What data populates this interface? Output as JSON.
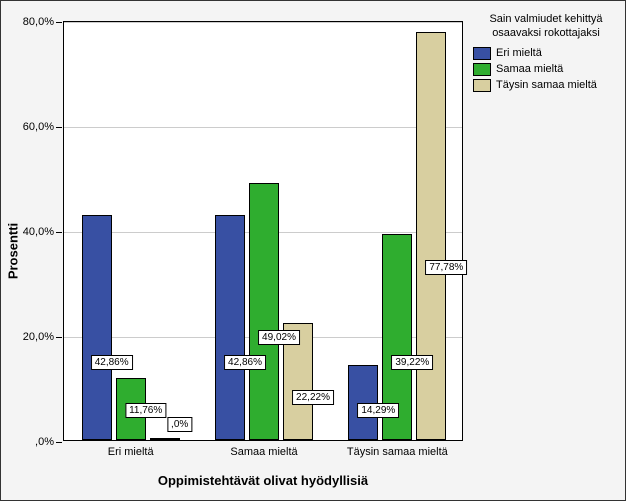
{
  "chart": {
    "type": "bar",
    "ylabel": "Prosentti",
    "xlabel": "Oppimistehtävät olivat hyödyllisiä",
    "background_color": "#f4f4f4",
    "plot_bg_color": "#ffffff",
    "grid_color": "#cccccc",
    "border_color": "#000000",
    "ylabel_fontsize": 13,
    "xlabel_fontsize": 13,
    "tick_fontsize": 11,
    "ylim": [
      0,
      80
    ],
    "ytick_step": 20,
    "yticks": [
      {
        "value": 0,
        "label": ",0%"
      },
      {
        "value": 20,
        "label": "20,0%"
      },
      {
        "value": 40,
        "label": "40,0%"
      },
      {
        "value": 60,
        "label": "60,0%"
      },
      {
        "value": 80,
        "label": "80,0%"
      }
    ],
    "categories": [
      "Eri mieltä",
      "Samaa mieltä",
      "Täysin samaa mieltä"
    ],
    "series": [
      {
        "name": "Eri mieltä",
        "color": "#3850a3"
      },
      {
        "name": "Samaa mieltä",
        "color": "#2fad2f"
      },
      {
        "name": "Täysin samaa mieltä",
        "color": "#d8cfa0"
      }
    ],
    "data": [
      {
        "category": "Eri mieltä",
        "bars": [
          {
            "series": 0,
            "value": 42.86,
            "label": "42,86%"
          },
          {
            "series": 1,
            "value": 11.76,
            "label": "11,76%"
          },
          {
            "series": 2,
            "value": 0.0,
            "label": ",0%"
          }
        ]
      },
      {
        "category": "Samaa mieltä",
        "bars": [
          {
            "series": 0,
            "value": 42.86,
            "label": "42,86%"
          },
          {
            "series": 1,
            "value": 49.02,
            "label": "49,02%"
          },
          {
            "series": 2,
            "value": 22.22,
            "label": "22,22%"
          }
        ]
      },
      {
        "category": "Täysin samaa mieltä",
        "bars": [
          {
            "series": 0,
            "value": 14.29,
            "label": "14,29%"
          },
          {
            "series": 1,
            "value": 39.22,
            "label": "39,22%"
          },
          {
            "series": 2,
            "value": 77.78,
            "label": "77,78%"
          }
        ]
      }
    ],
    "legend": {
      "title": "Sain valmiudet kehittyä osaavaksi rokottajaksi",
      "items": [
        {
          "color": "#3850a3",
          "label": "Eri mieltä"
        },
        {
          "color": "#2fad2f",
          "label": "Samaa mieltä"
        },
        {
          "color": "#d8cfa0",
          "label": "Täysin samaa mieltä"
        }
      ]
    },
    "bar_label_offsets": [
      [
        {
          "dy": 70
        },
        {
          "dy": 22
        },
        {
          "dy": 8
        }
      ],
      [
        {
          "dy": 70
        },
        {
          "dy": 95
        },
        {
          "dy": 35
        }
      ],
      [
        {
          "dy": 22
        },
        {
          "dy": 70
        },
        {
          "dy": 165
        }
      ]
    ]
  }
}
